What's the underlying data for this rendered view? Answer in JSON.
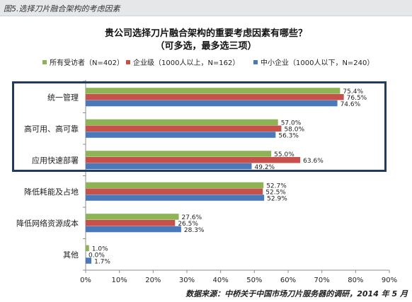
{
  "caption": "图5.选择刀片融合架构的考虑因素",
  "chart_data": {
    "type": "bar",
    "orientation": "horizontal",
    "title": "贵公司选择刀片融合架构的重要考虑因素有哪些？",
    "subtitle": "（可多选，最多选三项）",
    "categories": [
      "统一管理",
      "高可用、高可靠",
      "应用快速部署",
      "降低耗能及占地",
      "降低网络资源成本",
      "其他"
    ],
    "series": [
      {
        "name": "所有受访者（N=402）",
        "color": "#8db354",
        "values": [
          75.4,
          57.0,
          55.0,
          52.7,
          27.6,
          1.0
        ],
        "labels": [
          "75.4%",
          "57.0%",
          "55.0%",
          "52.7%",
          "27.6%",
          "1.0%"
        ]
      },
      {
        "name": "企业级（1000人以上，N=162）",
        "color": "#c8504b",
        "values": [
          76.5,
          58.0,
          63.6,
          52.5,
          26.5,
          0.0
        ],
        "labels": [
          "76.5%",
          "58.0%",
          "63.6%",
          "52.5%",
          "26.5%",
          "0.0%"
        ]
      },
      {
        "name": "中小企业（1000人以下，N=240）",
        "color": "#4a78b8",
        "values": [
          74.6,
          56.3,
          49.2,
          52.9,
          28.3,
          1.7
        ],
        "labels": [
          "74.6%",
          "56.3%",
          "49.2%",
          "52.9%",
          "28.3%",
          "1.7%"
        ]
      }
    ],
    "xlim": [
      0,
      90
    ],
    "xticks": [
      "0%",
      "10%",
      "20%",
      "30%",
      "40%",
      "50%",
      "60%",
      "70%",
      "80%",
      "90%"
    ],
    "legend_position": "top",
    "grid": false,
    "highlight_categories": [
      "统一管理",
      "高可用、高可靠",
      "应用快速部署"
    ]
  },
  "source": "数据来源：中桥关于中国市场刀片服务器的调研，2014 年 5 月"
}
